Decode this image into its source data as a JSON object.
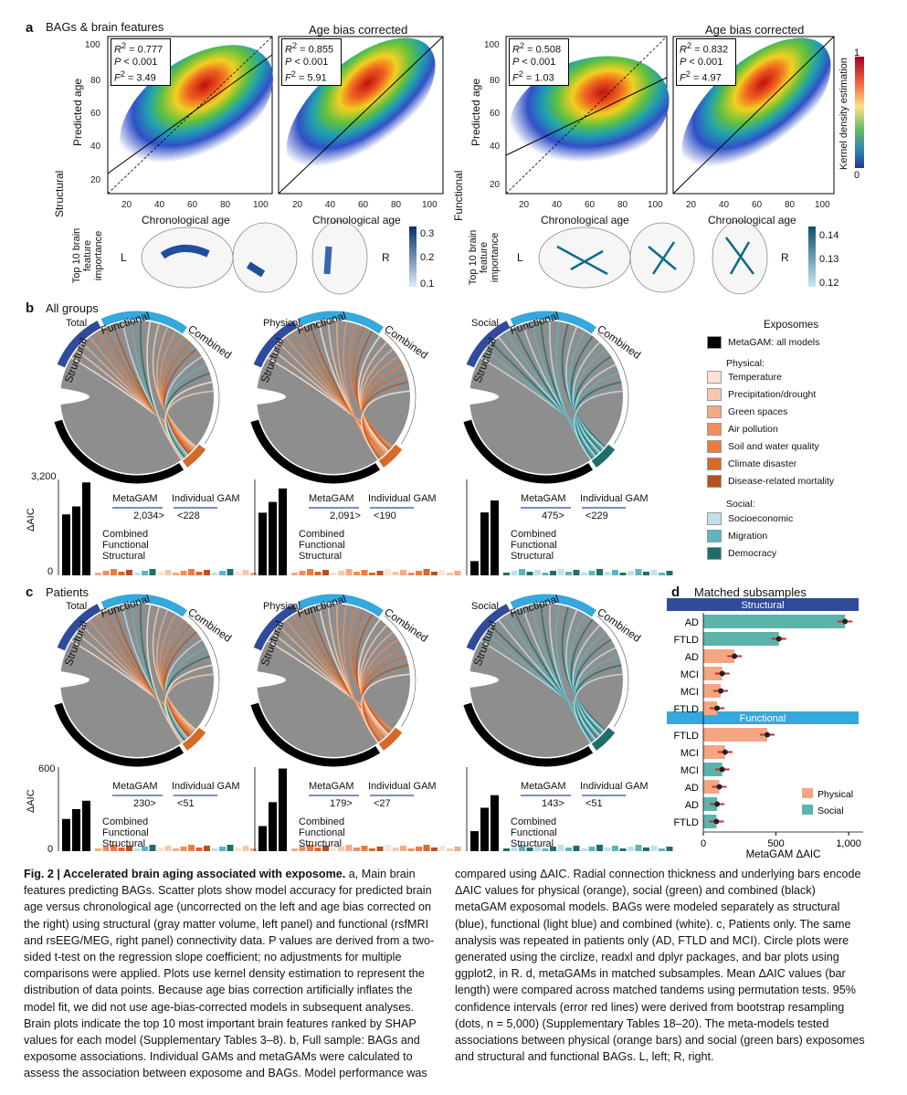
{
  "figure": {
    "panel_a": {
      "label": "a",
      "title": "BAGs & brain features",
      "row_label_structural": "Structural",
      "row_label_functional": "Functional",
      "bias_title": "Age bias corrected",
      "xlabel": "Chronological age",
      "ylabel": "Predicted age",
      "density_label": "Kernel density estimation",
      "density_max": "1",
      "density_min": "0",
      "importance_label": "Top 10 brain feature importance",
      "left_hemi": "L",
      "right_hemi": "R",
      "struct_scale": [
        "0.3",
        "0.2",
        "0.1"
      ],
      "func_scale": [
        "0.14",
        "0.13",
        "0.12"
      ],
      "scatter_stats": [
        {
          "r2": "= 0.777",
          "p": "< 0.001",
          "f2": "= 3.49"
        },
        {
          "r2": "= 0.855",
          "p": "< 0.001",
          "f2": "= 5.91"
        },
        {
          "r2": "= 0.508",
          "p": "< 0.001",
          "f2": "= 1.03"
        },
        {
          "r2": "= 0.832",
          "p": "< 0.001",
          "f2": "= 4.97"
        }
      ]
    },
    "panel_b": {
      "label": "b",
      "title": "All groups",
      "groups": [
        {
          "name": "Total",
          "metagam": "2,034>",
          "indiv": "<228"
        },
        {
          "name": "Physical",
          "metagam": "2,091>",
          "indiv": "<190"
        },
        {
          "name": "Social",
          "metagam": "475>",
          "indiv": "<229"
        }
      ],
      "yaxis_max": "3,200",
      "yaxis_min": "0",
      "ylabel": "ΔAIC"
    },
    "panel_c": {
      "label": "c",
      "title": "Patients",
      "groups": [
        {
          "name": "Total",
          "metagam": "230>",
          "indiv": "<51"
        },
        {
          "name": "Physical",
          "metagam": "179>",
          "indiv": "<27"
        },
        {
          "name": "Social",
          "metagam": "143>",
          "indiv": "<51"
        }
      ],
      "yaxis_max": "600",
      "yaxis_min": "0",
      "ylabel": "ΔAIC"
    },
    "chord_labels": {
      "structural": "Structural",
      "functional": "Functional",
      "combined": "Combined"
    },
    "bar_labels": {
      "metagam": "MetaGAM",
      "individual": "Individual GAM",
      "combined": "Combined",
      "functional": "Functional",
      "structural": "Structural"
    },
    "exposomes_legend": {
      "title": "Exposomes",
      "metagam": "MetaGAM: all models",
      "physical_header": "Physical:",
      "physical": [
        {
          "label": "Temperature",
          "color": "#fbe3d6"
        },
        {
          "label": "Precipitation/drought",
          "color": "#f6c8ab"
        },
        {
          "label": "Green spaces",
          "color": "#f2ab84"
        },
        {
          "label": "Air pollution",
          "color": "#ee8f5c"
        },
        {
          "label": "Soil and water quality",
          "color": "#ea7d3d"
        },
        {
          "label": "Climate disaster",
          "color": "#d56a2a"
        },
        {
          "label": "Disease-related mortality",
          "color": "#b5521f"
        }
      ],
      "social_header": "Social:",
      "social": [
        {
          "label": "Socioeconomic",
          "color": "#bfe1e6"
        },
        {
          "label": "Migration",
          "color": "#5fb3bd"
        },
        {
          "label": "Democracy",
          "color": "#1f6e6c"
        }
      ]
    },
    "panel_d": {
      "label": "d",
      "title": "Matched subsamples",
      "structural_header": "Structural",
      "functional_header": "Functional",
      "xlabel": "MetaGAM ΔAIC",
      "ticks": [
        "0",
        "500",
        "1,000"
      ],
      "legend_physical": "Physical",
      "legend_social": "Social",
      "colors": {
        "physical": "#f4a582",
        "social": "#5ab4ac",
        "header_struct": "#2f4b9a",
        "header_func": "#35a8dd"
      }
    },
    "caption": {
      "fig_label": "Fig. 2 | Accelerated brain aging associated with exposome.",
      "left": " a, Main brain features predicting BAGs. Scatter plots show model accuracy for predicted brain age versus chronological age (uncorrected on the left and age bias corrected on the right) using structural (gray matter volume, left panel) and functional (rsfMRI and rsEEG/MEG, right panel) connectivity data. P values are derived from a two-sided t-test on the regression slope coefficient; no adjustments for multiple comparisons were applied. Plots use kernel density estimation to represent the distribution of data points. Because age bias correction artificially inflates the model fit, we did not use age-bias-corrected models in subsequent analyses. Brain plots indicate the top 10 most important brain features ranked by SHAP values for each model (Supplementary Tables 3–8). b, Full sample: BAGs and exposome associations. Individual GAMs and metaGAMs were calculated to assess the association between exposome and BAGs. Model performance was",
      "right": "compared using ΔAIC. Radial connection thickness and underlying bars encode ΔAIC values for physical (orange), social (green) and combined (black) metaGAM exposomal models. BAGs were modeled separately as structural (blue), functional (light blue) and combined (white). c, Patients only. The same analysis was repeated in patients only (AD, FTLD and MCI). Circle plots were generated using the circlize, readxl and dplyr packages, and bar plots using ggplot2, in R. d, metaGAMs in matched subsamples. Mean ΔAIC values (bar length) were compared across matched tandems using permutation tests. 95% confidence intervals (error red lines) were derived from bootstrap resampling (dots, n = 5,000) (Supplementary Tables 18–20). The meta-models tested associations between physical (orange bars) and social (green bars) exposomes and structural and functional BAGs. L, left; R, right."
    }
  },
  "chart_data": [
    {
      "type": "bar",
      "title": "Matched subsamples",
      "xlabel": "MetaGAM ΔAIC",
      "xlim": [
        0,
        1100
      ],
      "orientation": "horizontal",
      "groups": [
        {
          "name": "Structural",
          "categories": [
            "AD",
            "FTLD",
            "AD",
            "MCI",
            "MCI",
            "FTLD"
          ],
          "values": [
            975,
            520,
            215,
            130,
            120,
            95
          ],
          "exposome": [
            "Social",
            "Social",
            "Physical",
            "Physical",
            "Physical",
            "Physical"
          ]
        },
        {
          "name": "Functional",
          "categories": [
            "FTLD",
            "MCI",
            "MCI",
            "AD",
            "AD",
            "FTLD"
          ],
          "values": [
            440,
            150,
            130,
            110,
            95,
            90
          ],
          "exposome": [
            "Physical",
            "Physical",
            "Social",
            "Physical",
            "Social",
            "Social"
          ]
        }
      ]
    },
    {
      "type": "bar",
      "title": "All groups ΔAIC (Total, Physical, Social)",
      "ylabel": "ΔAIC",
      "ylim": [
        0,
        3200
      ],
      "series": [
        {
          "name": "Total",
          "values": [
            2034,
            2300,
            3100
          ]
        },
        {
          "name": "Physical",
          "values": [
            2091,
            2450,
            2900
          ]
        },
        {
          "name": "Social",
          "values": [
            475,
            2100,
            2500
          ]
        }
      ],
      "categories": [
        "Structural",
        "Functional",
        "Combined"
      ]
    },
    {
      "type": "bar",
      "title": "Patients ΔAIC (Total, Physical, Social)",
      "ylabel": "ΔAIC",
      "ylim": [
        0,
        600
      ],
      "series": [
        {
          "name": "Total",
          "values": [
            230,
            300,
            360
          ]
        },
        {
          "name": "Physical",
          "values": [
            179,
            350,
            590
          ]
        },
        {
          "name": "Social",
          "values": [
            143,
            310,
            400
          ]
        }
      ],
      "categories": [
        "Structural",
        "Functional",
        "Combined"
      ]
    }
  ]
}
